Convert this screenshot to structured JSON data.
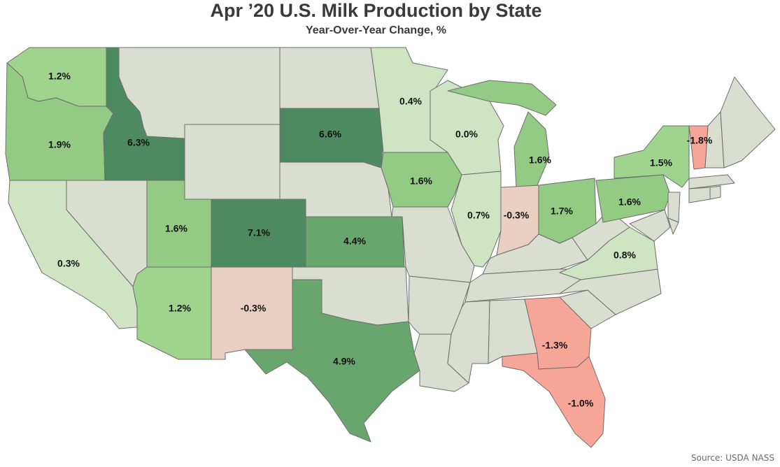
{
  "title": "Apr ’20 U.S. Milk Production by State",
  "subtitle": "Year-Over-Year Change, %",
  "source": "Source: USDA NASS",
  "colors": {
    "no_data": "#d9ded0",
    "neg_strong": "#f7a596",
    "neg_light": "#e8cfc2",
    "pos_0": "#cfe4c2",
    "pos_1": "#9fd48e",
    "pos_1_5": "#93ca84",
    "pos_4": "#69a66d",
    "pos_6": "#4e8a60"
  },
  "chart_data": {
    "type": "choropleth",
    "metric": "Year-Over-Year Change, %",
    "states": [
      {
        "state": "WA",
        "value": 1.2,
        "label": "1.2%"
      },
      {
        "state": "OR",
        "value": 1.9,
        "label": "1.9%"
      },
      {
        "state": "ID",
        "value": 6.3,
        "label": "6.3%"
      },
      {
        "state": "CA",
        "value": 0.3,
        "label": "0.3%"
      },
      {
        "state": "UT",
        "value": 1.6,
        "label": "1.6%"
      },
      {
        "state": "AZ",
        "value": 1.2,
        "label": "1.2%"
      },
      {
        "state": "CO",
        "value": 7.1,
        "label": "7.1%"
      },
      {
        "state": "NM",
        "value": -0.3,
        "label": "-0.3%"
      },
      {
        "state": "SD",
        "value": 6.6,
        "label": "6.6%"
      },
      {
        "state": "KS",
        "value": 4.4,
        "label": "4.4%"
      },
      {
        "state": "TX",
        "value": 4.9,
        "label": "4.9%"
      },
      {
        "state": "MN",
        "value": 0.4,
        "label": "0.4%"
      },
      {
        "state": "IA",
        "value": 1.6,
        "label": "1.6%"
      },
      {
        "state": "WI",
        "value": 0.0,
        "label": "0.0%"
      },
      {
        "state": "IL",
        "value": 0.7,
        "label": "0.7%"
      },
      {
        "state": "MI",
        "value": 1.6,
        "label": "1.6%"
      },
      {
        "state": "IN",
        "value": -0.3,
        "label": "-0.3%"
      },
      {
        "state": "OH",
        "value": 1.7,
        "label": "1.7%"
      },
      {
        "state": "PA",
        "value": 1.6,
        "label": "1.6%"
      },
      {
        "state": "NY",
        "value": 1.5,
        "label": "1.5%"
      },
      {
        "state": "VT",
        "value": -1.8,
        "label": "-1.8%"
      },
      {
        "state": "VA",
        "value": 0.8,
        "label": "0.8%"
      },
      {
        "state": "GA",
        "value": -1.3,
        "label": "-1.3%"
      },
      {
        "state": "FL",
        "value": -1.0,
        "label": "-1.0%"
      }
    ]
  }
}
